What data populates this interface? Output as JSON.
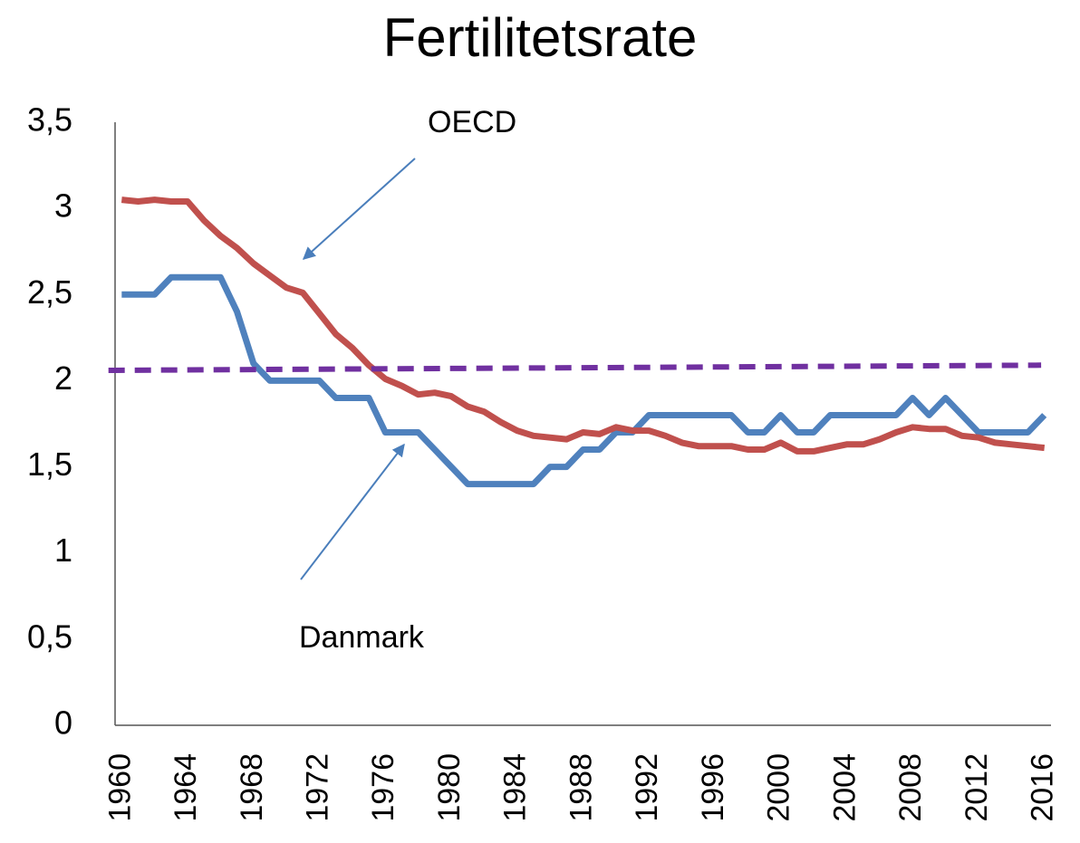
{
  "chart_data": {
    "type": "line",
    "title": "Fertilitetsrate",
    "x": [
      1960,
      1961,
      1962,
      1963,
      1964,
      1965,
      1966,
      1967,
      1968,
      1969,
      1970,
      1971,
      1972,
      1973,
      1974,
      1975,
      1976,
      1977,
      1978,
      1979,
      1980,
      1981,
      1982,
      1983,
      1984,
      1985,
      1986,
      1987,
      1988,
      1989,
      1990,
      1991,
      1992,
      1993,
      1994,
      1995,
      1996,
      1997,
      1998,
      1999,
      2000,
      2001,
      2002,
      2003,
      2004,
      2005,
      2006,
      2007,
      2008,
      2009,
      2010,
      2011,
      2012,
      2013,
      2014,
      2015,
      2016
    ],
    "series": [
      {
        "name": "Danmark",
        "color": "#4f81bd",
        "values": [
          2.5,
          2.5,
          2.5,
          2.6,
          2.6,
          2.6,
          2.6,
          2.4,
          2.1,
          2.0,
          2.0,
          2.0,
          2.0,
          1.9,
          1.9,
          1.9,
          1.7,
          1.7,
          1.7,
          1.6,
          1.5,
          1.4,
          1.4,
          1.4,
          1.4,
          1.4,
          1.5,
          1.5,
          1.6,
          1.6,
          1.7,
          1.7,
          1.8,
          1.8,
          1.8,
          1.8,
          1.8,
          1.8,
          1.7,
          1.7,
          1.8,
          1.7,
          1.7,
          1.8,
          1.8,
          1.8,
          1.8,
          1.8,
          1.9,
          1.8,
          1.9,
          1.8,
          1.7,
          1.7,
          1.7,
          1.7,
          1.8
        ]
      },
      {
        "name": "OECD",
        "color": "#c0504d",
        "values": [
          3.05,
          3.04,
          3.05,
          3.04,
          3.04,
          2.93,
          2.84,
          2.77,
          2.68,
          2.61,
          2.54,
          2.51,
          2.39,
          2.27,
          2.19,
          2.09,
          2.01,
          1.97,
          1.92,
          1.93,
          1.91,
          1.85,
          1.82,
          1.76,
          1.71,
          1.68,
          1.67,
          1.66,
          1.7,
          1.69,
          1.73,
          1.71,
          1.71,
          1.68,
          1.64,
          1.62,
          1.62,
          1.62,
          1.6,
          1.6,
          1.64,
          1.59,
          1.59,
          1.61,
          1.63,
          1.63,
          1.66,
          1.7,
          1.73,
          1.72,
          1.72,
          1.68,
          1.67,
          1.64,
          1.63,
          1.62,
          1.61
        ]
      }
    ],
    "reference_line": {
      "color": "#7030a0",
      "dashed": true,
      "x": [
        1959.2,
        2015.8
      ],
      "values": [
        2.06,
        2.09
      ]
    },
    "annotations": [
      "OECD",
      "Danmark"
    ],
    "xlim": [
      1959.6,
      2016.4
    ],
    "xticks": [
      1960,
      1964,
      1968,
      1972,
      1976,
      1980,
      1984,
      1988,
      1992,
      1996,
      2000,
      2004,
      2008,
      2012,
      2016
    ],
    "ylim": [
      0,
      3.5
    ],
    "yticks": [
      0,
      {
        "value": 0.5,
        "label": "0,5"
      },
      1,
      {
        "value": 1.5,
        "label": "1,5"
      },
      2,
      {
        "value": 2.5,
        "label": "2,5"
      },
      3,
      {
        "value": 3.5,
        "label": "3,5"
      }
    ],
    "grid": false
  }
}
